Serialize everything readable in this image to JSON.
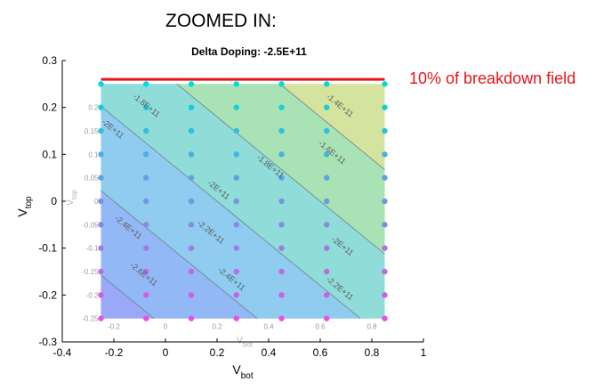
{
  "heading": "ZOOMED IN:",
  "annotation": "10% of breakdown field",
  "colors": {
    "annotation": "#e8141c",
    "limit_line": "#e8141c"
  },
  "chart_data": {
    "type": "contour",
    "title": "Delta Doping: -2.5E+11",
    "xlabel": "V",
    "xlabel_sub": "bot",
    "ylabel": "V",
    "ylabel_sub": "top",
    "xlim": [
      -0.4,
      1
    ],
    "ylim": [
      -0.3,
      0.3
    ],
    "xticks": [
      "-0.4",
      "-0.2",
      "0",
      "0.2",
      "0.4",
      "0.6",
      "0.8",
      "1"
    ],
    "yticks": [
      "-0.3",
      "-0.2",
      "-0.1",
      "0",
      "0.1",
      "0.2",
      "0.3"
    ],
    "inner_xticks": [
      "-0.2",
      "0",
      "0.2",
      "0.4",
      "0.6",
      "0.8"
    ],
    "inner_yticks": [
      "-0.25",
      "-0.2",
      "-0.15",
      "-0.1",
      "-0.05",
      "0",
      "0.05",
      "0.1",
      "0.15",
      "0.2"
    ],
    "inner_xlabel": "V",
    "inner_xlabel_sub": "bot",
    "inner_ylabel": "V",
    "inner_ylabel_sub": "top",
    "region": {
      "x": [
        -0.25,
        0.85
      ],
      "y": [
        -0.25,
        0.25
      ]
    },
    "limit_line_y": 0.26,
    "limit_line_label": "10% of breakdown field",
    "contour_slope": -0.45,
    "contour_lines": [
      {
        "label": "-1.4E+11",
        "intercept": 0.63
      },
      {
        "label": "-1.6E+11",
        "intercept": 0.45
      },
      {
        "label": "-1.8E+11",
        "intercept": 0.27
      },
      {
        "label": "-2E+11",
        "intercept": 0.09
      },
      {
        "label": "-2.2E+11",
        "intercept": -0.09
      },
      {
        "label": "-2.4E+11",
        "intercept": -0.27
      },
      {
        "label": "-2.6E+11",
        "intercept": -0.45
      }
    ],
    "contour_labels": [
      {
        "text": "-1.4E+11",
        "x": 0.67,
        "y": 0.2
      },
      {
        "text": "-1.6E+11",
        "x": 0.64,
        "y": 0.1
      },
      {
        "text": "-1.8E+11",
        "x": -0.08,
        "y": 0.2
      },
      {
        "text": "-1.8E+11",
        "x": 0.4,
        "y": 0.07
      },
      {
        "text": "-2E+11",
        "x": -0.21,
        "y": 0.15
      },
      {
        "text": "-2E+11",
        "x": 0.2,
        "y": 0.02
      },
      {
        "text": "-2E+11",
        "x": 0.68,
        "y": -0.1
      },
      {
        "text": "-2.2E+11",
        "x": 0.17,
        "y": -0.07
      },
      {
        "text": "-2.2E+11",
        "x": 0.67,
        "y": -0.19
      },
      {
        "text": "-2.4E+11",
        "x": -0.15,
        "y": -0.06
      },
      {
        "text": "-2.4E+11",
        "x": 0.25,
        "y": -0.17
      },
      {
        "text": "-2.6E+11",
        "x": -0.09,
        "y": -0.16
      }
    ],
    "sample_points": {
      "x": [
        -0.25,
        -0.075,
        0.1,
        0.275,
        0.45,
        0.625,
        0.85
      ],
      "y": [
        -0.25,
        -0.2,
        -0.15,
        -0.1,
        -0.05,
        0,
        0.05,
        0.1,
        0.15,
        0.2,
        0.25
      ]
    }
  }
}
